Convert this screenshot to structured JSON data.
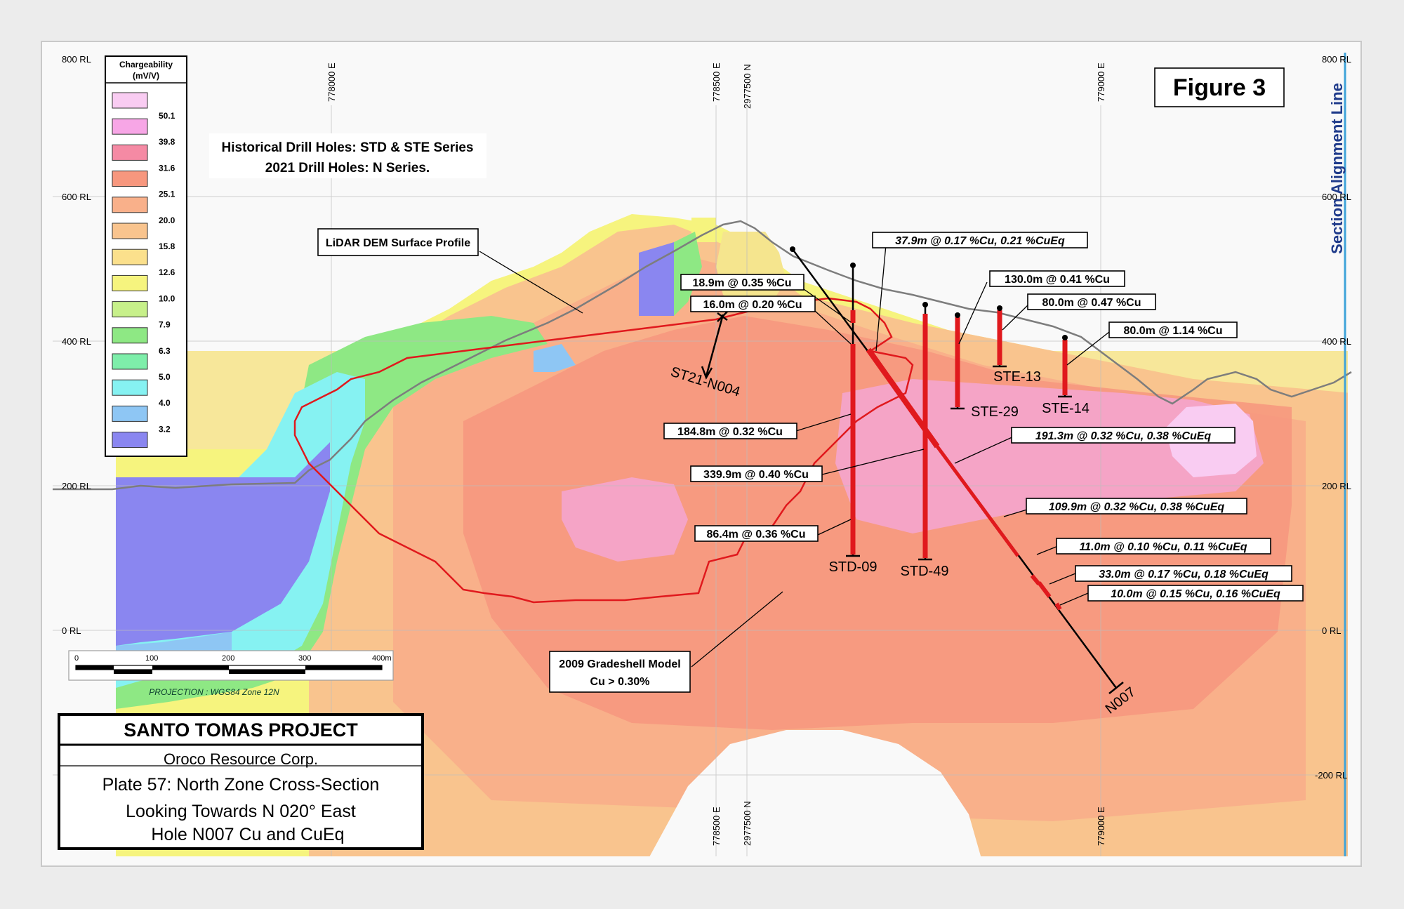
{
  "figure_label": "Figure 3",
  "side_label": "Section Alignment Line",
  "header_note": {
    "line1": "Historical Drill Holes: STD & STE Series",
    "line2": "2021 Drill Holes: N Series."
  },
  "legend": {
    "title_line1": "Chargeability",
    "title_line2": "(mV/V)",
    "entries": [
      {
        "color": "#f9ccf2",
        "value": "50.1"
      },
      {
        "color": "#f7a6e6",
        "value": "39.8"
      },
      {
        "color": "#f58aa4",
        "value": "31.6"
      },
      {
        "color": "#f7977e",
        "value": "25.1"
      },
      {
        "color": "#f9b08a",
        "value": "20.0"
      },
      {
        "color": "#f9c48e",
        "value": "15.8"
      },
      {
        "color": "#fbe08c",
        "value": "12.6"
      },
      {
        "color": "#f6f47e",
        "value": "10.0"
      },
      {
        "color": "#c7f08a",
        "value": "7.9"
      },
      {
        "color": "#8ee884",
        "value": "6.3"
      },
      {
        "color": "#7eeeaa",
        "value": "5.0"
      },
      {
        "color": "#86f2f2",
        "value": "4.0"
      },
      {
        "color": "#8ec6f4",
        "value": "3.2"
      },
      {
        "color": "#8a86f0",
        "value": ""
      }
    ]
  },
  "elevation_labels_left": [
    "800 RL",
    "600 RL",
    "400 RL",
    "200 RL",
    "0 RL"
  ],
  "elevation_labels_right": [
    "800 RL",
    "600 RL",
    "400 RL",
    "200 RL",
    "0 RL",
    "-200 RL"
  ],
  "grid_labels": [
    "778000 E",
    "778500 E",
    "2977500 N",
    "779000 E"
  ],
  "callouts": {
    "lidar": "LiDAR DEM Surface Profile",
    "gradeshell_line1": "2009 Gradeshell Model",
    "gradeshell_line2": "Cu > 0.30%"
  },
  "intercepts": [
    "37.9m @ 0.17 %Cu, 0.21 %CuEq",
    "18.9m @ 0.35 %Cu",
    "16.0m @ 0.20 %Cu",
    "130.0m @ 0.41 %Cu",
    "80.0m @ 0.47 %Cu",
    "80.0m @ 1.14 %Cu",
    "184.8m @ 0.32 %Cu",
    "191.3m @ 0.32 %Cu, 0.38 %CuEq",
    "339.9m @ 0.40 %Cu",
    "109.9m @ 0.32 %Cu, 0.38 %CuEq",
    "86.4m @ 0.36 %Cu",
    "11.0m @ 0.10 %Cu, 0.11 %CuEq",
    "33.0m @ 0.17 %Cu, 0.18 %CuEq",
    "10.0m @ 0.15 %Cu, 0.16 %CuEq"
  ],
  "holes": [
    "STD-09",
    "STD-49",
    "STE-13",
    "STE-29",
    "STE-14",
    "N007",
    "ST21-N004"
  ],
  "scale_bar": {
    "ticks": [
      "0",
      "100",
      "200",
      "300",
      "400m"
    ],
    "projection": "PROJECTION : WGS84 Zone 12N"
  },
  "title_block": {
    "project": "SANTO TOMAS PROJECT",
    "company": "Oroco Resource Corp.",
    "plate": "Plate 57: North Zone Cross-Section",
    "looking": "Looking Towards N 020° East",
    "hole": "Hole N007 Cu and CuEq"
  },
  "colors": {
    "shell_outline": "#e0191d",
    "terrain": "#7d7d7d",
    "side_label": "#1e3a8a",
    "section_line": "#3fa3d9"
  }
}
